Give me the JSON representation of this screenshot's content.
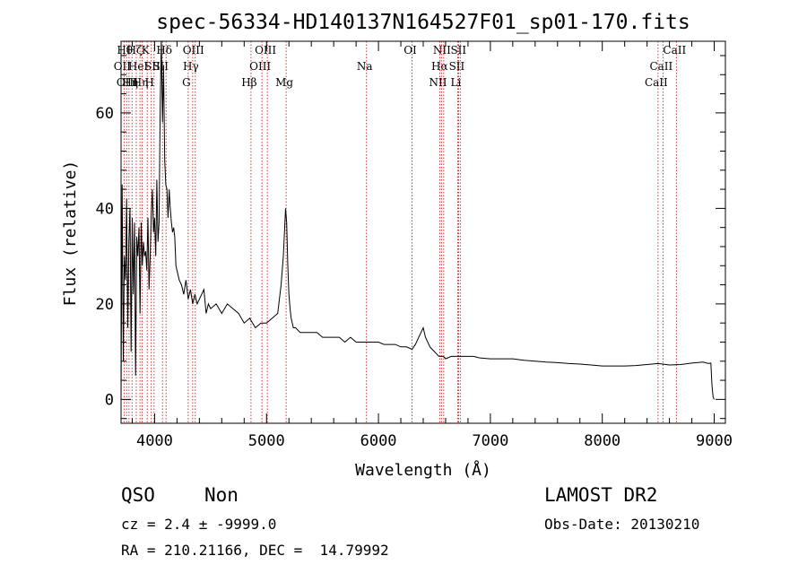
{
  "chart_data": {
    "type": "line",
    "title": "spec-56334-HD140137N164527F01_sp01-170.fits",
    "xlabel": "Wavelength (Å)",
    "ylabel": "Flux (relative)",
    "xlim": [
      3700,
      9100
    ],
    "ylim": [
      -5,
      75
    ],
    "x_ticks": [
      4000,
      5000,
      6000,
      7000,
      8000,
      9000
    ],
    "y_ticks": [
      0,
      20,
      40,
      60
    ],
    "x_tick_labels": [
      "4000",
      "5000",
      "6000",
      "7000",
      "8000",
      "9000"
    ],
    "y_tick_labels": [
      "0",
      "20",
      "40",
      "60"
    ],
    "grid": false,
    "series": [
      {
        "x": [
          3700,
          3710,
          3720,
          3730,
          3740,
          3750,
          3760,
          3770,
          3780,
          3790,
          3800,
          3810,
          3820,
          3830,
          3840,
          3850,
          3860,
          3870,
          3880,
          3890,
          3900,
          3910,
          3920,
          3930,
          3940,
          3950,
          3960,
          3970,
          3980,
          3990,
          4000,
          4010,
          4020,
          4030,
          4040,
          4050,
          4060,
          4070,
          4080,
          4090,
          4100,
          4110,
          4120,
          4130,
          4140,
          4150,
          4160,
          4170,
          4180,
          4190,
          4200,
          4220,
          4240,
          4260,
          4280,
          4300,
          4320,
          4340,
          4360,
          4380,
          4400,
          4420,
          4440,
          4460,
          4480,
          4500,
          4550,
          4600,
          4650,
          4700,
          4750,
          4800,
          4850,
          4900,
          4950,
          5000,
          5050,
          5100,
          5130,
          5150,
          5170,
          5180,
          5190,
          5200,
          5210,
          5220,
          5240,
          5260,
          5300,
          5350,
          5400,
          5450,
          5500,
          5550,
          5600,
          5650,
          5700,
          5750,
          5800,
          5850,
          5900,
          5950,
          6000,
          6050,
          6100,
          6150,
          6200,
          6250,
          6300,
          6330,
          6360,
          6380,
          6400,
          6420,
          6440,
          6460,
          6480,
          6500,
          6520,
          6540,
          6560,
          6580,
          6600,
          6650,
          6700,
          6750,
          6800,
          6850,
          6900,
          6950,
          7000,
          7100,
          7200,
          7300,
          7400,
          7500,
          7600,
          7700,
          7800,
          7900,
          8000,
          8100,
          8200,
          8300,
          8400,
          8500,
          8600,
          8700,
          8800,
          8900,
          8950,
          8970,
          8980,
          8990,
          9000
        ],
        "y": [
          0,
          45,
          8,
          30,
          25,
          42,
          15,
          33,
          40,
          10,
          38,
          22,
          37,
          5,
          34,
          30,
          36,
          18,
          37,
          28,
          33,
          30,
          31,
          27,
          38,
          23,
          30,
          39,
          44,
          35,
          38,
          30,
          46,
          33,
          37,
          62,
          75,
          58,
          70,
          50,
          45,
          44,
          38,
          44,
          40,
          37,
          35,
          36,
          34,
          28,
          27,
          25,
          24,
          22,
          25,
          21,
          23,
          20,
          22,
          20,
          21,
          22,
          23,
          18,
          20,
          19,
          20,
          18,
          20,
          19,
          18,
          16,
          17,
          15,
          16,
          16,
          17,
          18,
          24,
          30,
          40,
          37,
          28,
          22,
          19,
          17,
          15,
          15,
          14,
          14,
          14,
          14,
          13,
          13,
          13,
          13,
          12,
          13,
          12,
          12,
          12,
          12,
          12,
          11.5,
          11.5,
          11.5,
          11,
          11,
          10.5,
          11.5,
          13,
          14,
          15,
          13,
          12,
          11,
          10.5,
          10,
          9.5,
          9,
          9,
          9,
          8.5,
          9,
          9,
          9,
          9,
          9,
          8.7,
          8.6,
          8.5,
          8.5,
          8.5,
          8.2,
          8.0,
          7.8,
          7.7,
          7.5,
          7.4,
          7.2,
          7.0,
          7.0,
          7.0,
          7.1,
          7.3,
          7.5,
          7.2,
          7.3,
          7.6,
          7.8,
          7.5,
          7.6,
          3,
          0.5,
          0
        ]
      }
    ],
    "lines": [
      {
        "x": 3727,
        "label": "OII",
        "row": 1
      },
      {
        "x": 3750,
        "label": "Hθ",
        "row": 0
      },
      {
        "x": 3771,
        "label": "OIII",
        "row": 2
      },
      {
        "x": 3798,
        "label": "Hη",
        "row": 2
      },
      {
        "x": 3836,
        "label": "Hζ",
        "row": 0
      },
      {
        "x": 3869,
        "label": "HeI",
        "row": 1
      },
      {
        "x": 3889,
        "label": "Hη",
        "row": 2
      },
      {
        "x": 3934,
        "label": "K",
        "row": 0
      },
      {
        "x": 3970,
        "label": "H",
        "row": 2
      },
      {
        "x": 3995,
        "label": "SII",
        "row": 1
      },
      {
        "x": 4102,
        "label": "Hδ",
        "row": 0
      },
      {
        "x": 4070,
        "label": "SII",
        "row": 1
      },
      {
        "x": 4300,
        "label": "G",
        "row": 2
      },
      {
        "x": 4340,
        "label": "Hγ",
        "row": 1
      },
      {
        "x": 4363,
        "label": "OIII",
        "row": 0
      },
      {
        "x": 4861,
        "label": "Hβ",
        "row": 2
      },
      {
        "x": 4959,
        "label": "OIII",
        "row": 1
      },
      {
        "x": 5007,
        "label": "OIII",
        "row": 0
      },
      {
        "x": 5175,
        "label": "Mg",
        "row": 2
      },
      {
        "x": 5893,
        "label": "Na",
        "row": 1
      },
      {
        "x": 6300,
        "label": "OI",
        "row": 0
      },
      {
        "x": 6548,
        "label": "NII",
        "row": 2
      },
      {
        "x": 6563,
        "label": "Hα",
        "row": 1
      },
      {
        "x": 6583,
        "label": "NII",
        "row": 0
      },
      {
        "x": 6716,
        "label": "SII",
        "row": 1
      },
      {
        "x": 6731,
        "label": "SII",
        "row": 0
      },
      {
        "x": 6708,
        "label": "Li",
        "row": 2
      },
      {
        "x": 8498,
        "label": "CaII",
        "row": 2
      },
      {
        "x": 8542,
        "label": "CaII",
        "row": 1
      },
      {
        "x": 8662,
        "label": "CaII",
        "row": 0
      }
    ]
  },
  "info": {
    "class": "QSO",
    "subclass": "Non",
    "cz": "cz = 2.4 ± -9999.0",
    "coords": "RA = 210.21166, DEC =  14.79992",
    "survey": "LAMOST DR2",
    "obs_date": "Obs-Date: 20130210"
  }
}
